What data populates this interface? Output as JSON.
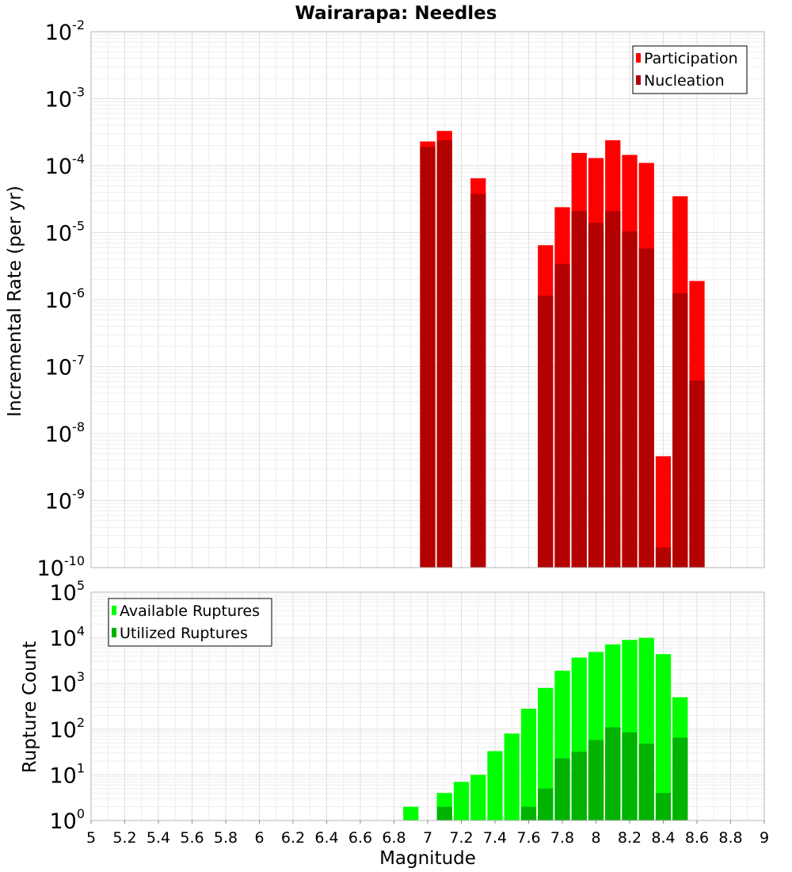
{
  "chart_data": [
    {
      "type": "bar",
      "title": "Wairarapa: Needles",
      "xlabel": "",
      "ylabel": "Incremental Rate (per yr)",
      "yscale": "log",
      "ylim_exp": [
        -10,
        -2
      ],
      "xlim": [
        5,
        9
      ],
      "bar_width": 0.1,
      "legend_position": "top-right",
      "series": [
        {
          "name": "Participation",
          "color": "#ff0000",
          "x": [
            7.0,
            7.1,
            7.3,
            7.7,
            7.8,
            7.9,
            8.0,
            8.1,
            8.2,
            8.3,
            8.4,
            8.5,
            8.6
          ],
          "values": [
            0.00023,
            0.00033,
            6.5e-05,
            6.5e-06,
            2.4e-05,
            0.000155,
            0.00013,
            0.00024,
            0.000145,
            0.00011,
            4.6e-09,
            3.5e-05,
            1.9e-06
          ]
        },
        {
          "name": "Nucleation",
          "color": "#b30000",
          "x": [
            7.0,
            7.1,
            7.3,
            7.7,
            7.8,
            7.9,
            8.0,
            8.1,
            8.2,
            8.3,
            8.4,
            8.5,
            8.6
          ],
          "values": [
            0.00019,
            0.00024,
            3.8e-05,
            1.15e-06,
            3.4e-06,
            2.1e-05,
            1.4e-05,
            2.1e-05,
            1.05e-05,
            5.8e-06,
            2e-10,
            1.25e-06,
            6.2e-08
          ]
        }
      ]
    },
    {
      "type": "bar",
      "title": "",
      "xlabel": "Magnitude",
      "ylabel": "Rupture Count",
      "yscale": "log",
      "ylim_exp": [
        0,
        5
      ],
      "xlim": [
        5,
        9
      ],
      "bar_width": 0.1,
      "legend_position": "top-left",
      "series": [
        {
          "name": "Available Ruptures",
          "color": "#00ff00",
          "x": [
            6.9,
            7.0,
            7.1,
            7.2,
            7.3,
            7.4,
            7.5,
            7.6,
            7.7,
            7.8,
            7.9,
            8.0,
            8.1,
            8.2,
            8.3,
            8.4,
            8.5,
            8.6
          ],
          "values": [
            2,
            1,
            4,
            7,
            10,
            33,
            80,
            280,
            800,
            1900,
            3700,
            4900,
            7200,
            9000,
            10000,
            4400,
            500,
            1
          ]
        },
        {
          "name": "Utilized Ruptures",
          "color": "#00b300",
          "x": [
            7.0,
            7.1,
            7.3,
            7.6,
            7.7,
            7.8,
            7.9,
            8.0,
            8.1,
            8.2,
            8.3,
            8.4,
            8.5,
            8.6
          ],
          "values": [
            1,
            2,
            1,
            2,
            5,
            23,
            32,
            58,
            110,
            85,
            48,
            4,
            65,
            1
          ]
        }
      ],
      "x_ticks": [
        "5",
        "5.2",
        "5.4",
        "5.6",
        "5.8",
        "6",
        "6.2",
        "6.4",
        "6.6",
        "6.8",
        "7",
        "7.2",
        "7.4",
        "7.6",
        "7.8",
        "8",
        "8.2",
        "8.4",
        "8.6",
        "8.8",
        "9"
      ]
    }
  ],
  "x_axis_label": "Magnitude"
}
